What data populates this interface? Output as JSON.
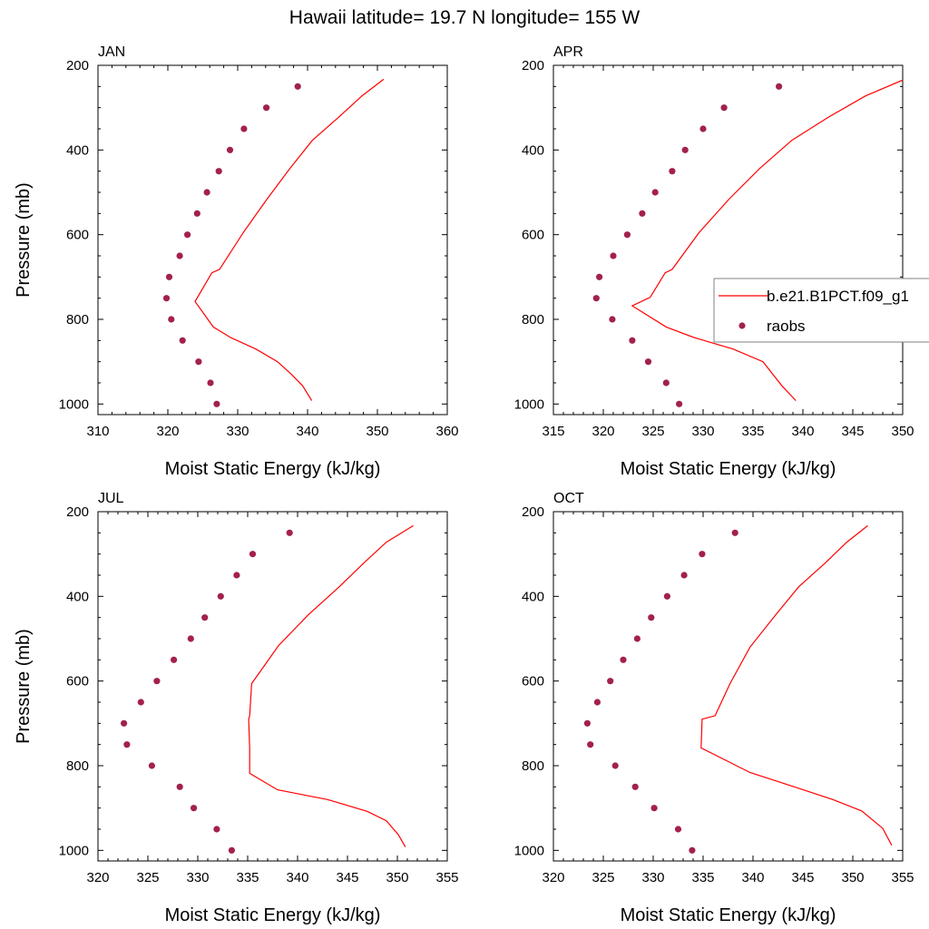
{
  "title": "Hawaii  latitude= 19.7 N longitude= 155 W",
  "colors": {
    "model": "#ff0000",
    "obs": "#a3204f",
    "axis": "#000000",
    "legend_border": "#808080"
  },
  "legend": {
    "model_label": "b.e21.B1PCT.f09_g1",
    "obs_label": "raobs",
    "placement": "right-middle, overlapping APR panel"
  },
  "chart_data": [
    {
      "type": "line+scatter",
      "panel": "JAN",
      "title": "JAN",
      "xlabel": "Moist Static Energy (kJ/kg)",
      "ylabel": "Pressure (mb)",
      "xlim": [
        310,
        360
      ],
      "ylim": [
        1025,
        200
      ],
      "y_reversed": true,
      "xticks": [
        310,
        320,
        330,
        340,
        350,
        360
      ],
      "yticks": [
        200,
        400,
        600,
        800,
        1000
      ],
      "series": [
        {
          "name": "b.e21.B1PCT.f09_g1",
          "kind": "line",
          "x": [
            350.9,
            347.8,
            344.5,
            340.7,
            337.5,
            334.2,
            330.8,
            327.4,
            326.3,
            323.9,
            326.5,
            329.0,
            332.6,
            335.7,
            337.7,
            339.3,
            340.6
          ],
          "y": [
            233,
            272,
            322,
            377,
            443,
            516,
            595,
            682,
            690,
            758,
            818,
            843,
            870,
            900,
            930,
            957,
            992
          ]
        },
        {
          "name": "raobs",
          "kind": "scatter",
          "x": [
            338.6,
            334.1,
            330.9,
            328.9,
            327.3,
            325.6,
            324.2,
            322.8,
            321.7,
            320.2,
            319.8,
            320.5,
            322.1,
            324.4,
            326.1,
            327.0
          ],
          "y": [
            250,
            300,
            350,
            400,
            450,
            500,
            550,
            600,
            650,
            700,
            750,
            800,
            850,
            900,
            950,
            1000
          ]
        }
      ]
    },
    {
      "type": "line+scatter",
      "panel": "APR",
      "title": "APR",
      "xlabel": "Moist Static Energy (kJ/kg)",
      "ylabel": "",
      "xlim": [
        315,
        350
      ],
      "ylim": [
        1025,
        200
      ],
      "y_reversed": true,
      "xticks": [
        315,
        320,
        325,
        330,
        335,
        340,
        345,
        350
      ],
      "yticks": [
        200,
        400,
        600,
        800,
        1000
      ],
      "series": [
        {
          "name": "b.e21.B1PCT.f09_g1",
          "kind": "line",
          "x": [
            350.2,
            346.3,
            342.6,
            338.9,
            335.7,
            332.6,
            329.6,
            326.9,
            326.2,
            324.7,
            322.9,
            326.3,
            329.1,
            333.0,
            336.0,
            337.9,
            339.3
          ],
          "y": [
            233,
            272,
            322,
            377,
            443,
            516,
            595,
            682,
            690,
            748,
            768,
            818,
            843,
            870,
            900,
            957,
            992
          ]
        },
        {
          "name": "raobs",
          "kind": "scatter",
          "x": [
            337.6,
            332.1,
            330.0,
            328.2,
            326.9,
            325.2,
            323.9,
            322.4,
            321.0,
            319.6,
            319.3,
            320.9,
            322.9,
            324.5,
            326.3,
            327.6
          ],
          "y": [
            250,
            300,
            350,
            400,
            450,
            500,
            550,
            600,
            650,
            700,
            750,
            800,
            850,
            900,
            950,
            1000
          ]
        }
      ]
    },
    {
      "type": "line+scatter",
      "panel": "JUL",
      "title": "JUL",
      "xlabel": "Moist Static Energy (kJ/kg)",
      "ylabel": "Pressure (mb)",
      "xlim": [
        320,
        355
      ],
      "ylim": [
        1025,
        200
      ],
      "y_reversed": true,
      "xticks": [
        320,
        325,
        330,
        335,
        340,
        345,
        350,
        355
      ],
      "yticks": [
        200,
        400,
        600,
        800,
        1000
      ],
      "series": [
        {
          "name": "b.e21.B1PCT.f09_g1",
          "kind": "line",
          "x": [
            351.6,
            348.9,
            346.6,
            344.2,
            341.1,
            338.1,
            335.4,
            335.2,
            335.1,
            335.2,
            335.2,
            338.0,
            343.0,
            347.0,
            348.9,
            350.1,
            350.8
          ],
          "y": [
            233,
            272,
            322,
            377,
            443,
            516,
            606,
            682,
            690,
            758,
            818,
            857,
            880,
            908,
            930,
            963,
            992
          ]
        },
        {
          "name": "raobs",
          "kind": "scatter",
          "x": [
            339.2,
            335.5,
            333.9,
            332.3,
            330.7,
            329.3,
            327.6,
            325.9,
            324.3,
            322.6,
            322.9,
            325.4,
            328.2,
            329.6,
            331.9,
            333.4
          ],
          "y": [
            250,
            300,
            350,
            400,
            450,
            500,
            550,
            600,
            650,
            700,
            750,
            800,
            850,
            900,
            950,
            1000
          ]
        }
      ]
    },
    {
      "type": "line+scatter",
      "panel": "OCT",
      "title": "OCT",
      "xlabel": "Moist Static Energy (kJ/kg)",
      "ylabel": "",
      "xlim": [
        320,
        355
      ],
      "ylim": [
        1025,
        200
      ],
      "y_reversed": true,
      "xticks": [
        320,
        325,
        330,
        335,
        340,
        345,
        350,
        355
      ],
      "yticks": [
        200,
        400,
        600,
        800,
        1000
      ],
      "series": [
        {
          "name": "b.e21.B1PCT.f09_g1",
          "kind": "line",
          "x": [
            351.5,
            349.4,
            347.2,
            344.6,
            342.3,
            339.7,
            337.7,
            336.2,
            334.9,
            334.8,
            334.8,
            339.7,
            344.8,
            348.0,
            350.9,
            353.0,
            353.9
          ],
          "y": [
            233,
            272,
            322,
            377,
            443,
            520,
            606,
            682,
            690,
            758,
            758,
            816,
            855,
            880,
            907,
            948,
            988
          ]
        },
        {
          "name": "raobs",
          "kind": "scatter",
          "x": [
            338.2,
            334.9,
            333.1,
            331.4,
            329.8,
            328.4,
            327.0,
            325.7,
            324.4,
            323.4,
            323.7,
            326.2,
            328.2,
            330.1,
            332.5,
            333.9
          ],
          "y": [
            250,
            300,
            350,
            400,
            450,
            500,
            550,
            600,
            650,
            700,
            750,
            800,
            850,
            900,
            950,
            1000
          ]
        }
      ]
    }
  ]
}
